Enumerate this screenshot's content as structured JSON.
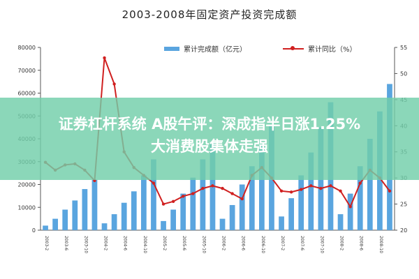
{
  "chart_data": {
    "type": "bar+line",
    "title": "2003-2008年固定资产投资完成额",
    "categories": [
      "2003-02",
      "2003-04",
      "2003-06",
      "2003-08",
      "2003-10",
      "2003-12",
      "2004-02",
      "2004-04",
      "2004-06",
      "2004-08",
      "2004-10",
      "2004-12",
      "2005-02",
      "2005-04",
      "2005-06",
      "2005-08",
      "2005-10",
      "2005-12",
      "2006-02",
      "2006-04",
      "2006-06",
      "2006-08",
      "2006-10",
      "2006-12",
      "2007-02",
      "2007-04",
      "2007-06",
      "2007-08",
      "2007-10",
      "2007-12",
      "2008-02",
      "2008-04",
      "2008-06",
      "2008-08",
      "2008-10",
      "2008-12"
    ],
    "x_tick_labels": [
      "2003-2",
      "2003-4",
      "2003-6",
      "2003-8",
      "2003-10",
      "2003-12",
      "2004-2",
      "2004-4",
      "2004-6",
      "2004-8",
      "2004-10",
      "2004-12",
      "2005-2",
      "2005-4",
      "2005-6",
      "2005-8",
      "2005-10",
      "2005-12",
      "2006-2",
      "2006-4",
      "2006-6",
      "2006-8",
      "2006-10",
      "2006-12",
      "2007-2",
      "2007-4",
      "2007-6",
      "2007-8",
      "2007-10",
      "2007-12",
      "2008-2",
      "2008-4",
      "2008-6",
      "2008-8",
      "2008-10",
      "2008-12"
    ],
    "series": [
      {
        "name": "累计完成额（亿元）",
        "type": "bar",
        "axis": "left",
        "color": "#5aa5df",
        "values": [
          2000,
          5000,
          9000,
          13000,
          18000,
          22000,
          3000,
          7000,
          12000,
          17000,
          24000,
          31000,
          4000,
          9000,
          16000,
          23000,
          31000,
          38000,
          5000,
          11000,
          20000,
          28000,
          37000,
          46000,
          6000,
          14000,
          24000,
          34000,
          45000,
          56000,
          7000,
          16000,
          28000,
          40000,
          52000,
          64000
        ]
      },
      {
        "name": "累计同比（%）",
        "type": "line",
        "axis": "right",
        "color": "#d02020",
        "values": [
          33.0,
          31.5,
          32.5,
          32.7,
          31.5,
          29.5,
          53.0,
          48.0,
          35.0,
          32.0,
          30.5,
          29.0,
          25.0,
          25.5,
          26.5,
          27.0,
          28.0,
          28.5,
          28.0,
          27.0,
          26.0,
          30.5,
          32.0,
          30.0,
          27.5,
          27.3,
          27.8,
          28.5,
          28.0,
          28.5,
          27.5,
          24.5,
          29.0,
          31.5,
          30.0,
          27.5
        ]
      }
    ],
    "y_left": {
      "ylim": [
        0,
        80000
      ],
      "ticks": [
        "0",
        "10000",
        "20000",
        "30000",
        "40000",
        "50000",
        "60000",
        "70000",
        "80000"
      ]
    },
    "y_right": {
      "ylim": [
        20,
        55
      ],
      "ticks": [
        "20",
        "25",
        "30",
        "35",
        "40",
        "45",
        "50",
        "55"
      ]
    },
    "legend_placement": "top-center",
    "grid": false
  },
  "overlay": {
    "banner_line1": "证券杠杆系统 A股午评：深成指半日涨1.25%",
    "banner_line2": "大消费股集体走强",
    "banner_color": "#72ceaa"
  }
}
